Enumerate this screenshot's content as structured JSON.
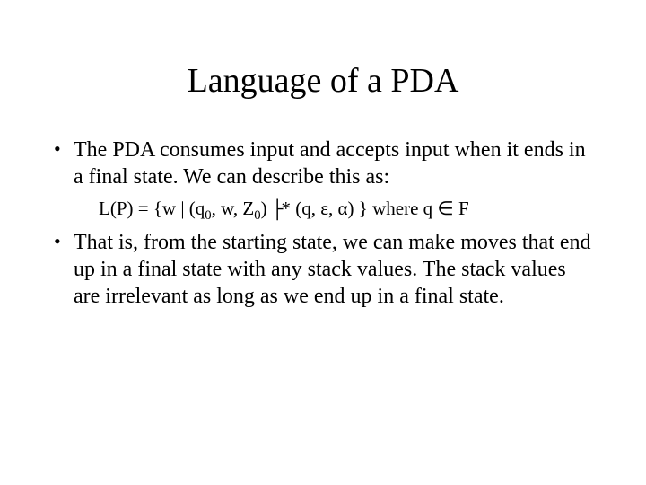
{
  "title": "Language of a PDA",
  "bullet1": "The PDA consumes input and accepts input when it ends in a final state.  We can describe this as:",
  "formula": {
    "lhs": "L(P) = {w | (q",
    "sub0a": "0",
    "mid1": ", w, Z",
    "sub0b": "0",
    "mid2": ") ",
    "turnstile": "├",
    "star": "*",
    "rhs": " (q, ε, α) } where q ∈ F"
  },
  "bullet2": "That is, from the starting state, we can make moves that end up in a final state with any stack values.  The stack values are irrelevant as long as we end up in a final state.",
  "style": {
    "background_color": "#ffffff",
    "text_color": "#000000",
    "title_fontsize": 38,
    "body_fontsize": 24,
    "formula_fontsize": 21,
    "font_family": "Times New Roman"
  }
}
